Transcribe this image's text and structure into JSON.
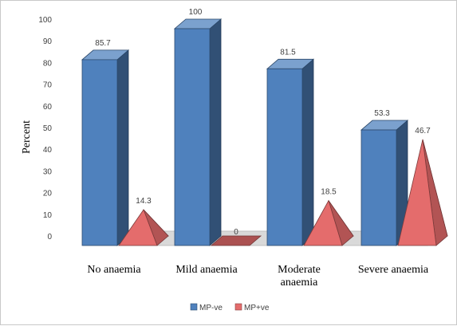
{
  "chart_data": {
    "type": "bar",
    "style": "3d-column-and-pyramid",
    "categories": [
      [
        "No anaemia"
      ],
      [
        "Mild anaemia"
      ],
      [
        "Moderate",
        "anaemia"
      ],
      [
        "Severe anaemia"
      ]
    ],
    "series": [
      {
        "name": "MP-ve",
        "shape": "column",
        "values": [
          85.7,
          100,
          81.5,
          53.3
        ],
        "color": "#4f81bd"
      },
      {
        "name": "MP+ve",
        "shape": "pyramid",
        "values": [
          14.3,
          0,
          18.5,
          46.7
        ],
        "color": "#e46c6c"
      }
    ],
    "data_labels": [
      [
        "85.7",
        "100",
        "81.5",
        "53.3"
      ],
      [
        "14.3",
        "0",
        "18.5",
        "46.7"
      ]
    ],
    "ylabel": "Percent",
    "ylim": [
      0,
      100
    ],
    "yticks": [
      0,
      10,
      20,
      30,
      40,
      50,
      60,
      70,
      80,
      90,
      100
    ],
    "grid": false,
    "legend": "bottom"
  }
}
